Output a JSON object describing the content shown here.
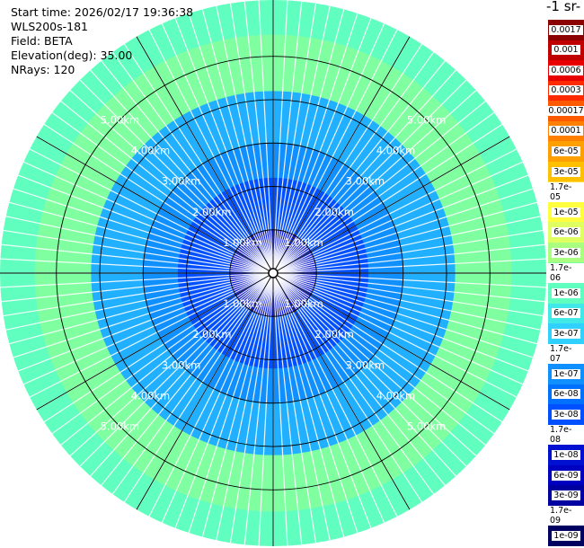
{
  "info": {
    "start_time": "Start time: 2026/02/17 19:36:38",
    "device": "WLS200s-181",
    "field": "Field: BETA",
    "elevation": "Elevation(deg): 35.00",
    "nrays": "NRays: 120"
  },
  "colorbar": {
    "unit_label": "-1 sr-",
    "labels": [
      "0.0017",
      "0.001",
      "0.0006",
      "0.0003",
      "0.00017",
      "0.0001",
      "6e-05",
      "3e-05",
      "1.7e-05",
      "1e-05",
      "6e-06",
      "3e-06",
      "1.7e-06",
      "1e-06",
      "6e-07",
      "3e-07",
      "1.7e-07",
      "1e-07",
      "6e-08",
      "3e-08",
      "1.7e-08",
      "1e-08",
      "6e-09",
      "3e-09",
      "1.7e-09",
      "1e-09"
    ],
    "colors": [
      "#8b0000",
      "#c00000",
      "#e80000",
      "#ff2a00",
      "#ff5a00",
      "#ff8000",
      "#ffa000",
      "#ffc000",
      "#ffe040",
      "#ffff40",
      "#e0ff60",
      "#a8ff80",
      "#80ffa0",
      "#60ffc0",
      "#40e8e8",
      "#30d0ff",
      "#20b0ff",
      "#1090ff",
      "#0070ff",
      "#0050ff",
      "#0030e8",
      "#0010d0",
      "#0000c0",
      "#0000a0",
      "#000080",
      "#000060"
    ]
  },
  "chart_data": {
    "type": "heatmap",
    "subtype": "polar-ppi",
    "field": "BETA",
    "n_rays": 120,
    "elevation_deg": 35.0,
    "range_rings_km": [
      1,
      2,
      3,
      4,
      5
    ],
    "ring_label_unit": "km",
    "ring_labels": [
      "1.00km",
      "2.00km",
      "3.00km",
      "4.00km",
      "5.00km"
    ],
    "max_range_km": 6.3,
    "zones": [
      {
        "r_km": [
          0.0,
          1.0
        ],
        "value": "1e-08"
      },
      {
        "r_km": [
          1.0,
          2.2
        ],
        "value": "3e-08"
      },
      {
        "r_km": [
          2.2,
          3.0
        ],
        "value": "1e-07"
      },
      {
        "r_km": [
          3.0,
          4.2
        ],
        "value": "1.7e-07"
      },
      {
        "r_km": [
          4.2,
          5.5
        ],
        "value": "1.7e-06"
      },
      {
        "r_km": [
          5.5,
          6.3
        ],
        "value": "1e-06"
      }
    ],
    "grid": true
  }
}
